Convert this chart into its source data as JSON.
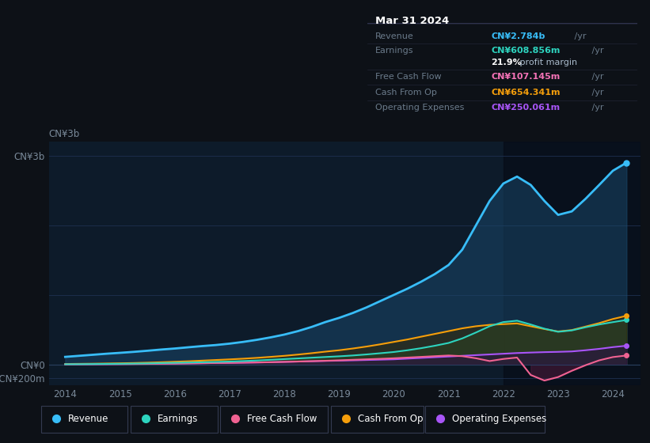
{
  "bg_color": "#0d1117",
  "plot_bg_color": "#0d1b2a",
  "title_box": {
    "date": "Mar 31 2024",
    "rows": [
      {
        "label": "Revenue",
        "value": "CN¥2.784b /yr",
        "color": "#38bdf8"
      },
      {
        "label": "Earnings",
        "value": "CN¥608.856m /yr",
        "color": "#2dd4bf"
      },
      {
        "label": "",
        "value": "21.9% profit margin",
        "color": "#ffffff"
      },
      {
        "label": "Free Cash Flow",
        "value": "CN¥107.145m /yr",
        "color": "#f472b6"
      },
      {
        "label": "Cash From Op",
        "value": "CN¥654.341m /yr",
        "color": "#f59e0b"
      },
      {
        "label": "Operating Expenses",
        "value": "CN¥250.061m /yr",
        "color": "#a855f7"
      }
    ]
  },
  "years": [
    2014,
    2014.25,
    2014.5,
    2014.75,
    2015,
    2015.25,
    2015.5,
    2015.75,
    2016,
    2016.25,
    2016.5,
    2016.75,
    2017,
    2017.25,
    2017.5,
    2017.75,
    2018,
    2018.25,
    2018.5,
    2018.75,
    2019,
    2019.25,
    2019.5,
    2019.75,
    2020,
    2020.25,
    2020.5,
    2020.75,
    2021,
    2021.25,
    2021.5,
    2021.75,
    2022,
    2022.25,
    2022.5,
    2022.75,
    2023,
    2023.25,
    2023.5,
    2023.75,
    2024,
    2024.25
  ],
  "revenue": [
    110,
    125,
    140,
    155,
    168,
    182,
    198,
    215,
    230,
    248,
    265,
    280,
    300,
    325,
    355,
    390,
    430,
    480,
    540,
    610,
    670,
    740,
    820,
    910,
    1000,
    1090,
    1190,
    1300,
    1430,
    1650,
    2000,
    2350,
    2600,
    2700,
    2580,
    2350,
    2150,
    2200,
    2380,
    2580,
    2784,
    2900
  ],
  "earnings": [
    4,
    5,
    7,
    9,
    11,
    14,
    17,
    21,
    25,
    29,
    33,
    38,
    43,
    50,
    58,
    68,
    78,
    88,
    98,
    108,
    118,
    130,
    145,
    162,
    180,
    205,
    235,
    270,
    310,
    375,
    460,
    550,
    610,
    630,
    575,
    515,
    470,
    490,
    535,
    575,
    609,
    640
  ],
  "free_cash_flow": [
    2,
    3,
    4,
    5,
    6,
    7,
    9,
    11,
    13,
    16,
    19,
    22,
    24,
    27,
    30,
    33,
    38,
    43,
    48,
    54,
    60,
    68,
    75,
    82,
    90,
    100,
    110,
    120,
    130,
    120,
    90,
    50,
    80,
    100,
    -150,
    -230,
    -180,
    -90,
    -10,
    60,
    107,
    130
  ],
  "cash_from_op": [
    8,
    10,
    12,
    15,
    18,
    22,
    27,
    33,
    40,
    47,
    56,
    65,
    74,
    84,
    96,
    110,
    125,
    143,
    163,
    185,
    205,
    230,
    258,
    290,
    325,
    360,
    400,
    440,
    480,
    520,
    550,
    570,
    580,
    590,
    550,
    510,
    475,
    495,
    545,
    595,
    654,
    700
  ],
  "operating_expenses": [
    3,
    4,
    5,
    6,
    7,
    9,
    11,
    13,
    15,
    17,
    19,
    22,
    24,
    27,
    30,
    34,
    38,
    43,
    47,
    52,
    56,
    60,
    65,
    70,
    75,
    85,
    95,
    105,
    115,
    125,
    135,
    145,
    155,
    165,
    172,
    178,
    182,
    188,
    205,
    225,
    250,
    270
  ],
  "ylim": [
    -300,
    3200
  ],
  "xlim_min": 2013.7,
  "xlim_max": 2024.5,
  "ytick_vals": [
    -200,
    0,
    1000,
    2000,
    3000
  ],
  "ytick_labels": [
    "-CN¥200m",
    "CN¥0",
    "",
    "",
    "CN¥3b"
  ],
  "xtick_vals": [
    2014,
    2015,
    2016,
    2017,
    2018,
    2019,
    2020,
    2021,
    2022,
    2023,
    2024
  ],
  "legend_items": [
    {
      "label": "Revenue",
      "color": "#38bdf8"
    },
    {
      "label": "Earnings",
      "color": "#2dd4bf"
    },
    {
      "label": "Free Cash Flow",
      "color": "#f06292"
    },
    {
      "label": "Cash From Op",
      "color": "#f59e0b"
    },
    {
      "label": "Operating Expenses",
      "color": "#a855f7"
    }
  ],
  "revenue_color": "#38bdf8",
  "revenue_fill_color": "#1a4a6e",
  "earnings_color": "#2dd4bf",
  "earnings_fill_color": "#1a4a45",
  "free_cash_flow_color": "#f06292",
  "fcf_fill_neg_color": "#4a1a3a",
  "cash_from_op_color": "#f59e0b",
  "cfo_fill_color": "#3a2a00",
  "operating_expenses_color": "#a855f7",
  "opex_fill_color": "#2a0a4a",
  "grid_color": "#1e3050",
  "zero_line_color": "#2a4060",
  "tick_label_color": "#7a8a9a",
  "text_color": "#ccddee",
  "highlight_x_start": 2022.0,
  "highlight_color": "#050a14"
}
